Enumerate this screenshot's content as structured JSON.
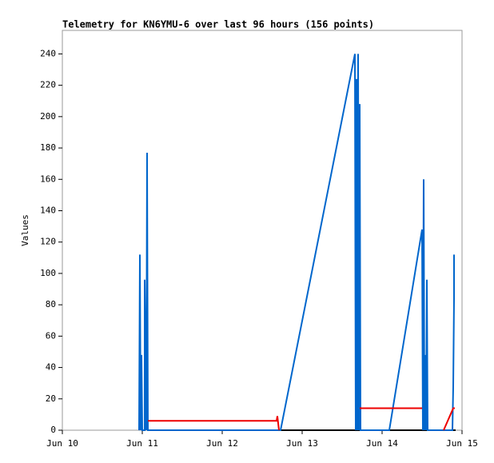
{
  "chart_data": {
    "type": "line",
    "title": "Telemetry for KN6YMU-6 over last 96 hours (156 points)",
    "y_label": "Values",
    "xlim": [
      0,
      120
    ],
    "ylim": [
      0,
      255
    ],
    "xticks": [
      {
        "value": 0,
        "label": "Jun 10"
      },
      {
        "value": 24,
        "label": "Jun 11"
      },
      {
        "value": 48,
        "label": "Jun 12"
      },
      {
        "value": 72,
        "label": "Jun 13"
      },
      {
        "value": 96,
        "label": "Jun 14"
      },
      {
        "value": 120,
        "label": "Jun 15"
      }
    ],
    "yticks": [
      0,
      20,
      40,
      60,
      80,
      100,
      120,
      140,
      160,
      180,
      200,
      220,
      240
    ],
    "series": [
      {
        "color": "#000000",
        "x": [
          25.68,
          118.08
        ],
        "values": [
          0,
          0
        ]
      },
      {
        "color": "#0066cc",
        "x": [
          23.04,
          23.28,
          23.52,
          23.76,
          24,
          24.72,
          24.72,
          25.2,
          25.44,
          25.68,
          65.52,
          87.84,
          88.08,
          88.32,
          88.56,
          88.8,
          89.04,
          89.28,
          89.52,
          98.16,
          108,
          108.24,
          108.48,
          108.72,
          108.96,
          109.2,
          109.44,
          109.68,
          117.12,
          117.36,
          117.6,
          117.6
        ],
        "values": [
          0,
          112,
          0,
          48,
          0,
          0,
          96,
          0,
          177,
          0,
          0,
          240,
          0,
          224,
          0,
          240,
          0,
          208,
          0,
          0,
          128,
          0,
          160,
          0,
          48,
          0,
          96,
          0,
          0,
          28,
          84,
          112
        ]
      },
      {
        "color": "#ee0000",
        "x": [
          25.68,
          64.32,
          64.56,
          65.04,
          null,
          89.28,
          108,
          null,
          114.48,
          117.36,
          117.84
        ],
        "values": [
          6,
          6,
          9,
          0,
          null,
          14,
          14,
          null,
          0,
          14,
          14
        ]
      }
    ]
  }
}
